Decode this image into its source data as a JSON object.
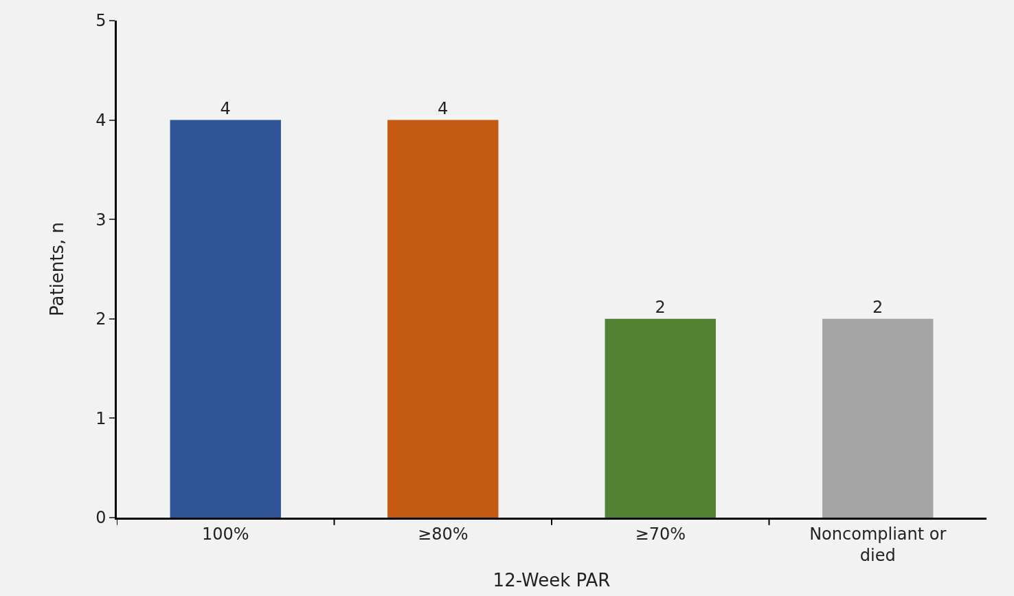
{
  "chart_data": {
    "type": "bar",
    "xlabel": "12-Week PAR",
    "ylabel": "Patients, n",
    "categories": [
      "100%",
      "≥80%",
      "≥70%",
      "Noncompliant or died"
    ],
    "values": [
      4,
      4,
      2,
      2
    ],
    "colors": [
      "#2f5597",
      "#c55a11",
      "#548235",
      "#a5a5a5"
    ],
    "ylim": [
      0,
      5
    ],
    "yticks": [
      0,
      1,
      2,
      3,
      4,
      5
    ],
    "data_labels": true
  }
}
